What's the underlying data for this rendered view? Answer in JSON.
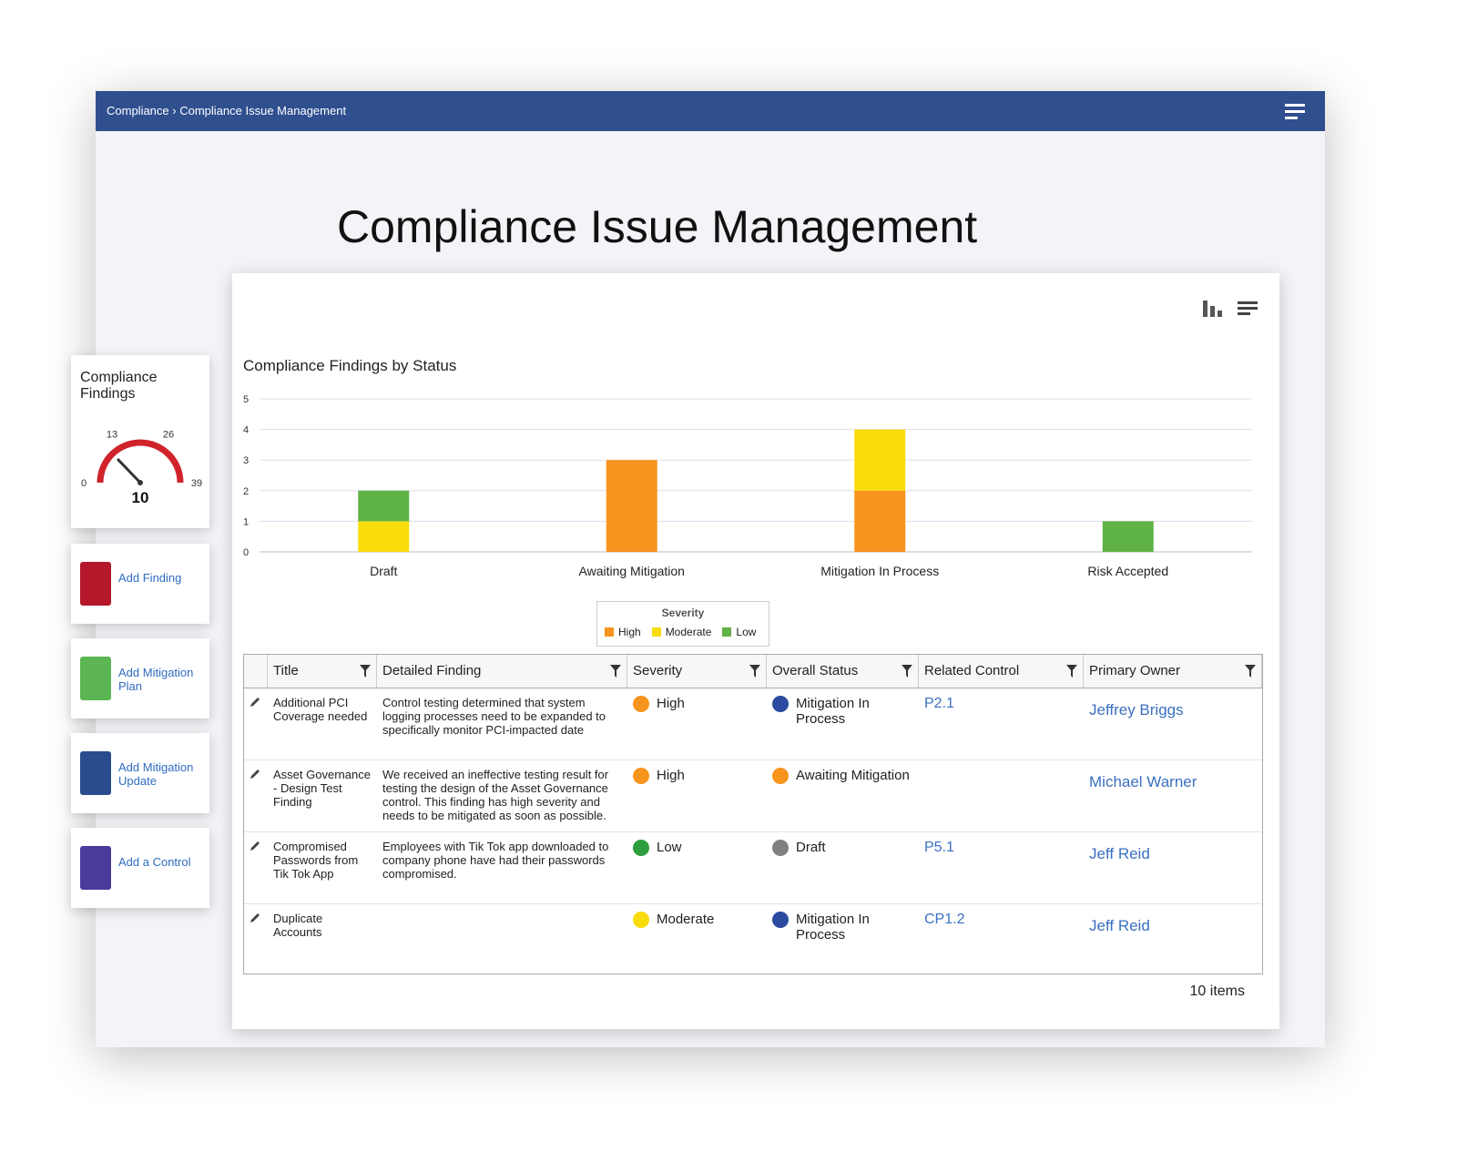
{
  "breadcrumb": {
    "root": "Compliance",
    "current": "Compliance Issue Management"
  },
  "title": "Compliance Issue Management",
  "gauge": {
    "title": "Compliance Findings",
    "ticks": [
      0,
      13,
      26,
      39
    ],
    "value": 10
  },
  "actions": [
    {
      "label": "Add Finding",
      "color": "#b5172b"
    },
    {
      "label": "Add Mitigation Plan",
      "color": "#5ab552"
    },
    {
      "label": "Add Mitigation Update",
      "color": "#2a4c8e"
    },
    {
      "label": "Add a Control",
      "color": "#4a3a9c"
    }
  ],
  "chart_data": {
    "type": "stacked-bar",
    "title": "Compliance Findings by Status",
    "categories": [
      "Draft",
      "Awaiting Mitigation",
      "Mitigation In Process",
      "Risk Accepted"
    ],
    "series": [
      {
        "name": "High",
        "color": "#f7941d",
        "values": [
          0,
          3,
          2,
          0
        ]
      },
      {
        "name": "Moderate",
        "color": "#f9dc0b",
        "values": [
          1,
          0,
          2,
          0
        ]
      },
      {
        "name": "Low",
        "color": "#5fb246",
        "values": [
          1,
          0,
          0,
          1
        ]
      }
    ],
    "ylim": [
      0,
      5
    ],
    "yticks": [
      0,
      1,
      2,
      3,
      4,
      5
    ],
    "grid": true,
    "legend_title": "Severity"
  },
  "table": {
    "headers": [
      "Title",
      "Detailed Finding",
      "Severity",
      "Overall Status",
      "Related Control",
      "Primary Owner"
    ],
    "rows": [
      {
        "title": "Additional PCI Coverage needed",
        "finding": "Control testing determined that system logging processes need to be expanded to specifically monitor PCI-impacted date",
        "severity": {
          "text": "High",
          "color": "#f7941d"
        },
        "status": {
          "text": "Mitigation In Process",
          "color": "#2b4aa0"
        },
        "control": "P2.1",
        "owner": "Jeffrey Briggs"
      },
      {
        "title": "Asset Governance - Design Test Finding",
        "finding": "We received an ineffective testing result for testing the design of the Asset Governance control. This finding has high severity and needs to be mitigated as soon as possible.",
        "severity": {
          "text": "High",
          "color": "#f7941d"
        },
        "status": {
          "text": "Awaiting Mitigation",
          "color": "#f7941d"
        },
        "control": null,
        "owner": "Michael Warner"
      },
      {
        "title": "Compromised Passwords from Tik Tok App",
        "finding": "Employees with Tik Tok app downloaded to company phone have had their passwords compromised.",
        "severity": {
          "text": "Low",
          "color": "#2e9e3e"
        },
        "status": {
          "text": "Draft",
          "color": "#808080"
        },
        "control": "P5.1",
        "owner": "Jeff Reid"
      },
      {
        "title": "Duplicate Accounts",
        "finding": null,
        "severity": {
          "text": "Moderate",
          "color": "#f9dc0b"
        },
        "status": {
          "text": "Mitigation In Process",
          "color": "#2b4aa0"
        },
        "control": "CP1.2",
        "owner": "Jeff Reid"
      }
    ]
  },
  "footer": "10 items"
}
